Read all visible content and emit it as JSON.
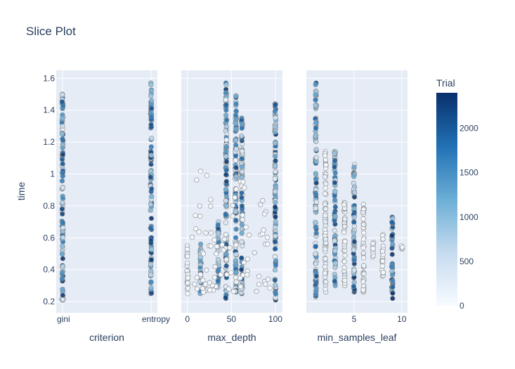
{
  "chart_data": {
    "type": "scatter",
    "title": "Slice Plot",
    "ylabel": "time",
    "ylim": [
      0.13,
      1.65
    ],
    "yticks": [
      0.2,
      0.4,
      0.6,
      0.8,
      1,
      1.2,
      1.4,
      1.6
    ],
    "y_tick_labels": [
      "0.2",
      "0.4",
      "0.6",
      "0.8",
      "1",
      "1.2",
      "1.4",
      "1.6"
    ],
    "colorbar": {
      "title": "Trial",
      "range": [
        0,
        2400
      ],
      "ticks": [
        0,
        500,
        1000,
        1500,
        2000
      ],
      "tick_labels": [
        "0",
        "500",
        "1000",
        "1500",
        "2000"
      ],
      "colorscale": [
        "#f7fbff",
        "#c6dbef",
        "#6baed6",
        "#2171b5",
        "#08306b"
      ]
    },
    "panels": [
      {
        "xlabel": "criterion",
        "x_type": "category",
        "categories": [
          "gini",
          "entropy"
        ],
        "columns": [
          {
            "x": "gini",
            "y_min": 0.21,
            "y_max": 1.5,
            "trial_range": [
              0,
              2400
            ]
          },
          {
            "x": "entropy",
            "y_min": 0.25,
            "y_max": 1.57,
            "trial_range": [
              500,
              2400
            ]
          }
        ]
      },
      {
        "xlabel": "max_depth",
        "x_type": "linear",
        "xlim": [
          -7,
          108
        ],
        "xticks": [
          0,
          50,
          100
        ],
        "x_tick_labels": [
          "0",
          "50",
          "100"
        ],
        "columns": [
          {
            "x": 0,
            "y_min": 0.25,
            "y_max": 0.55,
            "trial_range": [
              0,
              150
            ]
          },
          {
            "x": 15,
            "y_min": 0.25,
            "y_max": 0.56,
            "trial_range": [
              100,
              2000
            ]
          },
          {
            "x": 35,
            "y_min": 0.29,
            "y_max": 0.7,
            "trial_range": [
              300,
              2300
            ]
          },
          {
            "x": 44,
            "y_min": 0.22,
            "y_max": 1.57,
            "trial_range": [
              0,
              2400
            ]
          },
          {
            "x": 55,
            "y_min": 0.26,
            "y_max": 1.49,
            "trial_range": [
              0,
              2400
            ]
          },
          {
            "x": 62,
            "y_min": 0.25,
            "y_max": 1.35,
            "trial_range": [
              0,
              2400
            ]
          },
          {
            "x": 100,
            "y_min": 0.21,
            "y_max": 1.44,
            "trial_range": [
              0,
              2400
            ]
          }
        ],
        "scatter_range": {
          "x": [
            5,
            95
          ],
          "y": [
            0.26,
            1.02
          ],
          "trial_range": [
            0,
            150
          ]
        }
      },
      {
        "xlabel": "min_samples_leaf",
        "x_type": "linear",
        "xlim": [
          0,
          10.6
        ],
        "xticks": [
          5,
          10
        ],
        "x_tick_labels": [
          "5",
          "10"
        ],
        "columns": [
          {
            "x": 1,
            "y_min": 0.23,
            "y_max": 1.57,
            "trial_range": [
              0,
              2400
            ]
          },
          {
            "x": 2,
            "y_min": 0.26,
            "y_max": 1.14,
            "trial_range": [
              0,
              300
            ]
          },
          {
            "x": 3,
            "y_min": 0.3,
            "y_max": 1.14,
            "trial_range": [
              400,
              2400
            ]
          },
          {
            "x": 4,
            "y_min": 0.3,
            "y_max": 0.82,
            "trial_range": [
              0,
              300
            ]
          },
          {
            "x": 5,
            "y_min": 0.26,
            "y_max": 1.06,
            "trial_range": [
              300,
              2400
            ]
          },
          {
            "x": 6,
            "y_min": 0.26,
            "y_max": 0.81,
            "trial_range": [
              0,
              300
            ]
          },
          {
            "x": 7,
            "y_min": 0.48,
            "y_max": 0.57,
            "trial_range": [
              0,
              150
            ]
          },
          {
            "x": 8,
            "y_min": 0.36,
            "y_max": 0.62,
            "trial_range": [
              0,
              200
            ]
          },
          {
            "x": 9,
            "y_min": 0.22,
            "y_max": 0.73,
            "trial_range": [
              700,
              2400
            ]
          },
          {
            "x": 10,
            "y_min": 0.53,
            "y_max": 0.55,
            "trial_range": [
              0,
              100
            ]
          }
        ]
      }
    ]
  }
}
